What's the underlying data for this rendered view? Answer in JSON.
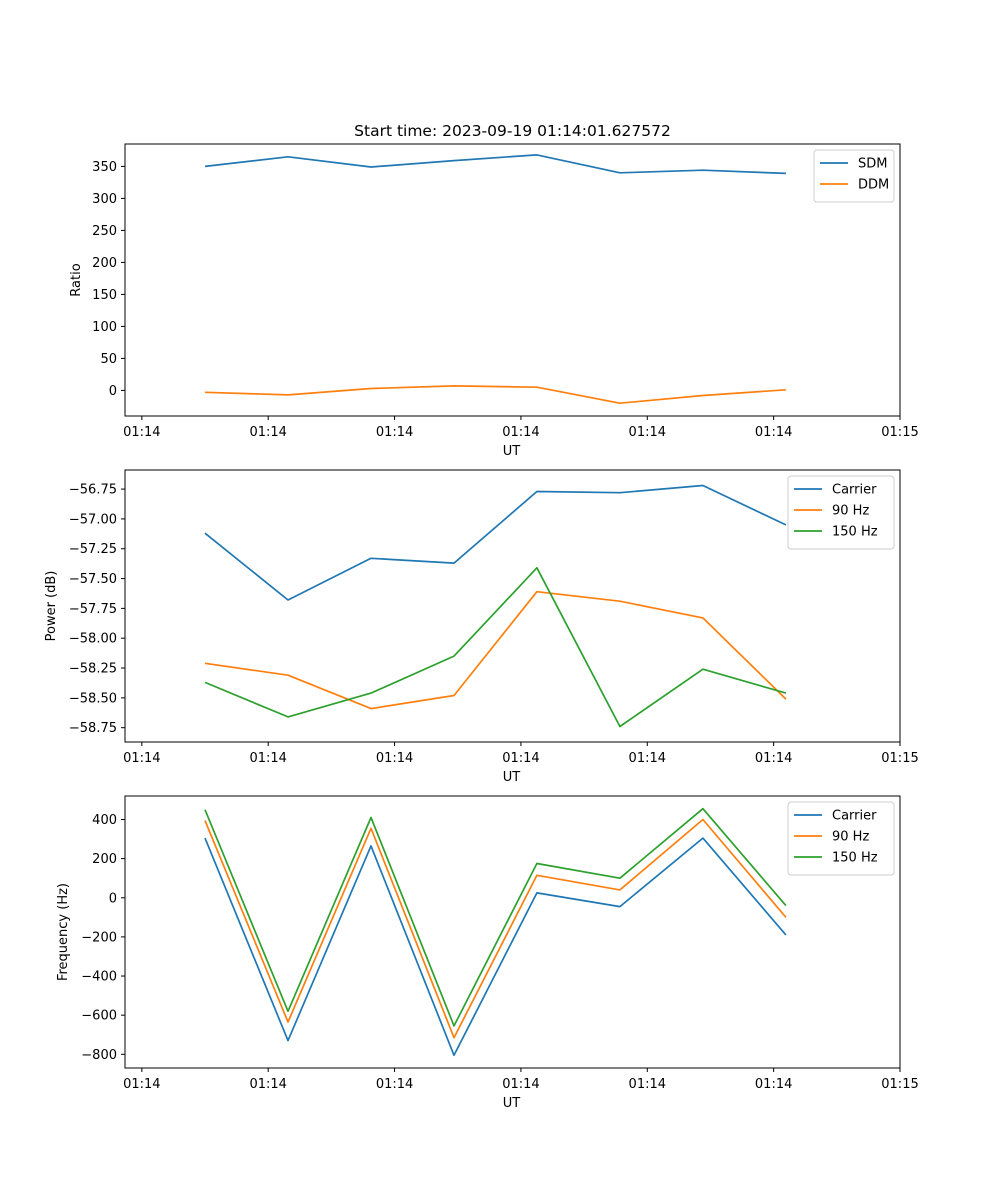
{
  "figure_title": "Start time: 2023-09-19 01:14:01.627572",
  "colors": {
    "blue": "#1f77b4",
    "orange": "#ff7f0e",
    "green": "#2ca02c"
  },
  "chart_data": [
    {
      "type": "line",
      "xlabel": "UT",
      "ylabel": "Ratio",
      "xlim": [
        -0.2,
        9.0
      ],
      "ylim": [
        -40,
        385
      ],
      "x_tick_values": [
        0,
        1.5,
        3,
        4.5,
        6,
        7.5,
        9
      ],
      "x_tick_labels": [
        "01:14",
        "01:14",
        "01:14",
        "01:14",
        "01:14",
        "01:14",
        "01:15"
      ],
      "y_ticks": [
        0,
        50,
        100,
        150,
        200,
        250,
        300,
        350
      ],
      "y_tick_labels": [
        "0",
        "50",
        "100",
        "150",
        "200",
        "250",
        "300",
        "350"
      ],
      "legend_position": "top-right",
      "x": [
        0.75,
        1.735,
        2.72,
        3.705,
        4.69,
        5.675,
        6.66,
        7.645
      ],
      "series": [
        {
          "name": "SDM",
          "color_key": "blue",
          "values": [
            350,
            365,
            349,
            359,
            368,
            340,
            344,
            339
          ]
        },
        {
          "name": "DDM",
          "color_key": "orange",
          "values": [
            -3,
            -7,
            3,
            7,
            5,
            -20,
            -8,
            1
          ]
        }
      ]
    },
    {
      "type": "line",
      "xlabel": "UT",
      "ylabel": "Power (dB)",
      "xlim": [
        -0.2,
        9.0
      ],
      "ylim": [
        -58.87,
        -56.59
      ],
      "x_tick_values": [
        0,
        1.5,
        3,
        4.5,
        6,
        7.5,
        9
      ],
      "x_tick_labels": [
        "01:14",
        "01:14",
        "01:14",
        "01:14",
        "01:14",
        "01:14",
        "01:15"
      ],
      "y_ticks": [
        -58.75,
        -58.5,
        -58.25,
        -58.0,
        -57.75,
        -57.5,
        -57.25,
        -57.0,
        -56.75
      ],
      "y_tick_labels": [
        "−58.75",
        "−58.50",
        "−58.25",
        "−58.00",
        "−57.75",
        "−57.50",
        "−57.25",
        "−57.00",
        "−56.75"
      ],
      "legend_position": "top-right",
      "x": [
        0.75,
        1.735,
        2.72,
        3.705,
        4.69,
        5.675,
        6.66,
        7.645
      ],
      "series": [
        {
          "name": "Carrier",
          "color_key": "blue",
          "values": [
            -57.12,
            -57.68,
            -57.33,
            -57.37,
            -56.77,
            -56.78,
            -56.72,
            -57.05
          ]
        },
        {
          "name": "90 Hz",
          "color_key": "orange",
          "values": [
            -58.21,
            -58.31,
            -58.59,
            -58.48,
            -57.61,
            -57.69,
            -57.83,
            -58.51
          ]
        },
        {
          "name": "150 Hz",
          "color_key": "green",
          "values": [
            -58.37,
            -58.66,
            -58.46,
            -58.15,
            -57.41,
            -58.74,
            -58.26,
            -58.46
          ]
        }
      ]
    },
    {
      "type": "line",
      "xlabel": "UT",
      "ylabel": "Frequency (Hz)",
      "xlim": [
        -0.2,
        9.0
      ],
      "ylim": [
        -870,
        520
      ],
      "x_tick_values": [
        0,
        1.5,
        3,
        4.5,
        6,
        7.5,
        9
      ],
      "x_tick_labels": [
        "01:14",
        "01:14",
        "01:14",
        "01:14",
        "01:14",
        "01:14",
        "01:15"
      ],
      "y_ticks": [
        -800,
        -600,
        -400,
        -200,
        0,
        200,
        400
      ],
      "y_tick_labels": [
        "−800",
        "−600",
        "−400",
        "−200",
        "0",
        "200",
        "400"
      ],
      "legend_position": "top-right",
      "x": [
        0.75,
        1.735,
        2.72,
        3.705,
        4.69,
        5.675,
        6.66,
        7.645
      ],
      "series": [
        {
          "name": "Carrier",
          "color_key": "blue",
          "values": [
            305,
            -730,
            265,
            -805,
            25,
            -45,
            305,
            -190
          ]
        },
        {
          "name": "90 Hz",
          "color_key": "orange",
          "values": [
            395,
            -635,
            355,
            -715,
            115,
            40,
            400,
            -100
          ]
        },
        {
          "name": "150 Hz",
          "color_key": "green",
          "values": [
            450,
            -580,
            410,
            -655,
            175,
            100,
            455,
            -40
          ]
        }
      ]
    }
  ]
}
